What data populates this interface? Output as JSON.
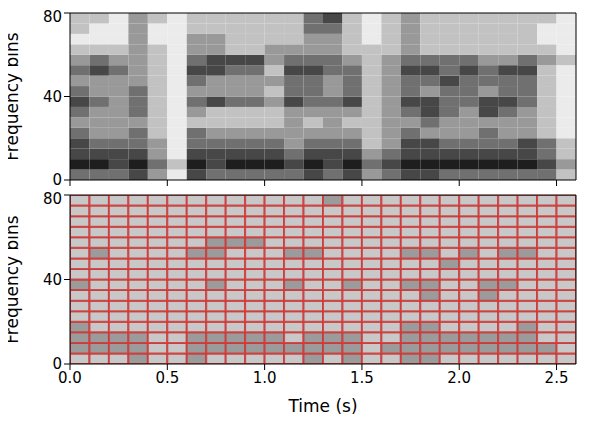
{
  "chart_data": [
    {
      "type": "heatmap",
      "y_label": "Frequency bins",
      "xlim": [
        0,
        2.6
      ],
      "ylim": [
        0,
        80
      ],
      "xticks": [
        {
          "value": 0,
          "label": "0.0"
        },
        0.5,
        {
          "value": 1,
          "label": "1.0"
        },
        1.5,
        {
          "value": 2,
          "label": "2.0"
        },
        2.5
      ],
      "yticks": [
        0,
        40,
        80
      ],
      "tick_labels": "y",
      "cells": [
        [
          6,
          6,
          6,
          7,
          5,
          3,
          7,
          6,
          6,
          6,
          6,
          6,
          7,
          6,
          7,
          5,
          6,
          7,
          7,
          6,
          6,
          6,
          6,
          6,
          6,
          4
        ],
        [
          8,
          8,
          7,
          8,
          6,
          4,
          8,
          7,
          8,
          8,
          8,
          7,
          8,
          7,
          8,
          6,
          7,
          8,
          8,
          8,
          8,
          8,
          8,
          8,
          7,
          5
        ],
        [
          7,
          7,
          7,
          7,
          5,
          3,
          7,
          7,
          7,
          7,
          7,
          6,
          7,
          7,
          7,
          5,
          6,
          7,
          7,
          7,
          7,
          7,
          7,
          7,
          6,
          4
        ],
        [
          7,
          6,
          6,
          6,
          5,
          3,
          6,
          6,
          6,
          6,
          6,
          5,
          6,
          6,
          6,
          4,
          5,
          7,
          7,
          6,
          6,
          6,
          6,
          7,
          6,
          4
        ],
        [
          6,
          5,
          5,
          6,
          4,
          3,
          6,
          5,
          5,
          5,
          5,
          5,
          5,
          5,
          5,
          4,
          5,
          6,
          5,
          5,
          5,
          6,
          5,
          5,
          4,
          3
        ],
        [
          5,
          5,
          5,
          5,
          4,
          3,
          4,
          4,
          4,
          4,
          4,
          5,
          4,
          5,
          4,
          4,
          5,
          5,
          6,
          5,
          5,
          5,
          5,
          5,
          4,
          3
        ],
        [
          6,
          5,
          5,
          6,
          4,
          3,
          5,
          4,
          4,
          4,
          4,
          5,
          5,
          5,
          5,
          4,
          5,
          6,
          7,
          6,
          5,
          7,
          6,
          5,
          4,
          3
        ],
        [
          7,
          6,
          5,
          6,
          4,
          3,
          6,
          7,
          6,
          6,
          5,
          7,
          6,
          6,
          7,
          4,
          5,
          7,
          7,
          6,
          6,
          7,
          7,
          6,
          4,
          3
        ],
        [
          6,
          5,
          5,
          6,
          4,
          3,
          5,
          5,
          5,
          5,
          4,
          6,
          6,
          5,
          6,
          4,
          5,
          6,
          5,
          6,
          6,
          5,
          6,
          6,
          4,
          3
        ],
        [
          5,
          5,
          5,
          5,
          4,
          3,
          6,
          5,
          5,
          5,
          5,
          6,
          6,
          5,
          6,
          4,
          5,
          6,
          6,
          7,
          6,
          6,
          6,
          6,
          4,
          3
        ],
        [
          6,
          7,
          6,
          5,
          4,
          3,
          7,
          7,
          6,
          6,
          4,
          7,
          7,
          6,
          6,
          4,
          5,
          7,
          7,
          6,
          7,
          6,
          7,
          7,
          4,
          3
        ],
        [
          5,
          6,
          5,
          5,
          4,
          3,
          6,
          7,
          7,
          7,
          5,
          6,
          6,
          6,
          5,
          4,
          5,
          6,
          6,
          6,
          6,
          5,
          5,
          6,
          5,
          4
        ],
        [
          4,
          4,
          4,
          5,
          4,
          3,
          5,
          5,
          4,
          4,
          5,
          5,
          5,
          5,
          4,
          4,
          4,
          5,
          4,
          4,
          4,
          4,
          4,
          4,
          4,
          3
        ],
        [
          3,
          3,
          3,
          5,
          3,
          3,
          5,
          5,
          4,
          4,
          4,
          4,
          5,
          5,
          4,
          3,
          4,
          5,
          4,
          4,
          4,
          4,
          4,
          4,
          3,
          3
        ],
        [
          4,
          3,
          3,
          5,
          3,
          3,
          4,
          4,
          4,
          4,
          4,
          4,
          6,
          6,
          4,
          3,
          4,
          5,
          4,
          4,
          4,
          4,
          4,
          4,
          3,
          3
        ],
        [
          4,
          4,
          3,
          5,
          4,
          3,
          4,
          4,
          4,
          4,
          4,
          4,
          6,
          7,
          4,
          3,
          4,
          5,
          4,
          4,
          4,
          4,
          4,
          4,
          4,
          3
        ]
      ]
    },
    {
      "type": "heatmap",
      "x_label": "Time (s)",
      "y_label": "Frequency bins",
      "xlim": [
        0,
        2.6
      ],
      "ylim": [
        0,
        80
      ],
      "xticks": [
        {
          "value": 0,
          "label": "0.0"
        },
        0.5,
        {
          "value": 1,
          "label": "1.0"
        },
        1.5,
        {
          "value": 2,
          "label": "2.0"
        },
        2.5
      ],
      "yticks": [
        0,
        40,
        80
      ],
      "color": "#cc3a3a",
      "cells": [
        [
          0,
          0,
          0,
          1,
          0,
          0,
          1,
          0,
          0,
          0,
          0,
          0,
          1,
          0,
          1,
          0,
          0,
          1,
          1,
          0,
          0,
          0,
          0,
          0,
          0,
          0
        ],
        [
          1,
          1,
          1,
          1,
          0,
          0,
          1,
          1,
          1,
          1,
          1,
          1,
          1,
          1,
          1,
          0,
          1,
          1,
          1,
          1,
          1,
          1,
          1,
          1,
          1,
          0
        ],
        [
          1,
          1,
          1,
          1,
          0,
          0,
          1,
          1,
          1,
          1,
          1,
          0,
          1,
          1,
          1,
          0,
          0,
          1,
          1,
          1,
          1,
          1,
          1,
          1,
          0,
          0
        ],
        [
          1,
          0,
          0,
          0,
          0,
          0,
          0,
          0,
          0,
          0,
          0,
          0,
          0,
          0,
          0,
          0,
          0,
          1,
          1,
          0,
          0,
          0,
          0,
          1,
          0,
          0
        ],
        [
          0,
          0,
          0,
          0,
          0,
          0,
          0,
          0,
          0,
          0,
          0,
          0,
          0,
          0,
          0,
          0,
          0,
          0,
          0,
          0,
          0,
          0,
          0,
          0,
          0,
          0
        ],
        [
          0,
          0,
          0,
          0,
          0,
          0,
          0,
          0,
          0,
          0,
          0,
          0,
          0,
          0,
          0,
          0,
          0,
          0,
          0,
          0,
          0,
          0,
          0,
          0,
          0,
          0
        ],
        [
          0,
          0,
          0,
          0,
          0,
          0,
          0,
          0,
          0,
          0,
          0,
          0,
          0,
          0,
          0,
          0,
          0,
          0,
          1,
          0,
          0,
          1,
          0,
          0,
          0,
          0
        ],
        [
          1,
          0,
          0,
          0,
          0,
          0,
          0,
          1,
          0,
          0,
          0,
          1,
          0,
          0,
          1,
          0,
          0,
          1,
          1,
          0,
          0,
          1,
          1,
          0,
          0,
          0
        ],
        [
          0,
          0,
          0,
          0,
          0,
          0,
          0,
          0,
          0,
          0,
          0,
          0,
          0,
          0,
          0,
          0,
          0,
          0,
          0,
          0,
          0,
          0,
          0,
          0,
          0,
          0
        ],
        [
          0,
          0,
          0,
          0,
          0,
          0,
          0,
          0,
          0,
          0,
          0,
          0,
          0,
          0,
          0,
          0,
          0,
          0,
          0,
          1,
          0,
          0,
          0,
          0,
          0,
          0
        ],
        [
          0,
          1,
          0,
          0,
          0,
          0,
          1,
          1,
          0,
          0,
          0,
          1,
          1,
          0,
          0,
          0,
          0,
          1,
          1,
          0,
          1,
          0,
          1,
          1,
          0,
          0
        ],
        [
          0,
          0,
          0,
          0,
          0,
          0,
          0,
          1,
          1,
          1,
          0,
          0,
          0,
          0,
          0,
          0,
          0,
          0,
          0,
          0,
          0,
          0,
          0,
          0,
          0,
          0
        ],
        [
          0,
          0,
          0,
          0,
          0,
          0,
          0,
          0,
          0,
          0,
          0,
          0,
          0,
          0,
          0,
          0,
          0,
          0,
          0,
          0,
          0,
          0,
          0,
          0,
          0,
          0
        ],
        [
          0,
          0,
          0,
          0,
          0,
          0,
          0,
          0,
          0,
          0,
          0,
          0,
          0,
          0,
          0,
          0,
          0,
          0,
          0,
          0,
          0,
          0,
          0,
          0,
          0,
          0
        ],
        [
          0,
          0,
          0,
          0,
          0,
          0,
          0,
          0,
          0,
          0,
          0,
          0,
          0,
          0,
          0,
          0,
          0,
          0,
          0,
          0,
          0,
          0,
          0,
          0,
          0,
          0
        ],
        [
          0,
          0,
          0,
          0,
          0,
          0,
          0,
          0,
          0,
          0,
          0,
          0,
          0,
          1,
          0,
          0,
          0,
          0,
          0,
          0,
          0,
          0,
          0,
          0,
          0,
          0
        ]
      ]
    }
  ]
}
